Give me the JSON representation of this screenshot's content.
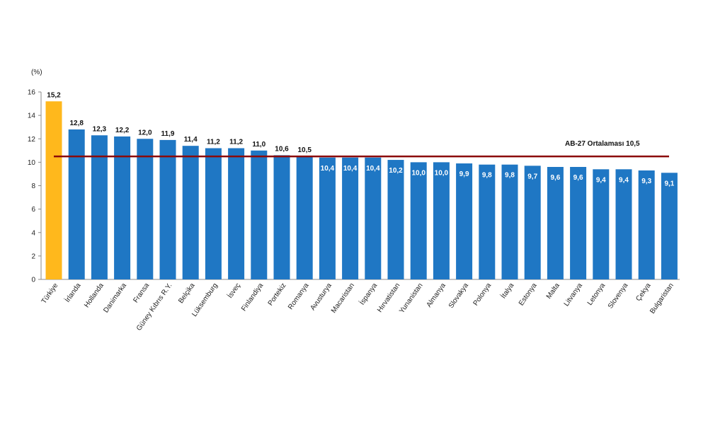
{
  "chart_data": {
    "type": "bar",
    "unit_label": "(%)",
    "categories": [
      "Türkiye",
      "İrlanda",
      "Hollanda",
      "Danimarka",
      "Fransa",
      "Güney Kıbrıs R.Y.",
      "Belçika",
      "Lüksemburg",
      "İsveç",
      "Finlandiya",
      "Portekiz",
      "Romanya",
      "Avusturya",
      "Macaristan",
      "İspanya",
      "Hırvatistan",
      "Yunanistan",
      "Almanya",
      "Slovakya",
      "Polonya",
      "İtalya",
      "Estonya",
      "Malta",
      "Litvanya",
      "Letonya",
      "Slovenya",
      "Çekya",
      "Bulgaristan"
    ],
    "values": [
      15.2,
      12.8,
      12.3,
      12.2,
      12.0,
      11.9,
      11.4,
      11.2,
      11.2,
      11.0,
      10.6,
      10.5,
      10.4,
      10.4,
      10.4,
      10.2,
      10.0,
      10.0,
      9.9,
      9.8,
      9.8,
      9.7,
      9.6,
      9.6,
      9.4,
      9.4,
      9.3,
      9.1
    ],
    "value_labels": [
      "15,2",
      "12,8",
      "12,3",
      "12,2",
      "12,0",
      "11,9",
      "11,4",
      "11,2",
      "11,2",
      "11,0",
      "10,6",
      "10,5",
      "10,4",
      "10,4",
      "10,4",
      "10,2",
      "10,0",
      "10,0",
      "9,9",
      "9,8",
      "9,8",
      "9,7",
      "9,6",
      "9,6",
      "9,4",
      "9,4",
      "9,3",
      "9,1"
    ],
    "highlight_category": "Türkiye",
    "ylim": [
      0,
      16
    ],
    "yticks": [
      0,
      2,
      4,
      6,
      8,
      10,
      12,
      14,
      16
    ],
    "reference_line": {
      "label": "AB-27 Ortalaması  10,5",
      "value": 10.5
    },
    "colors": {
      "bar": "#1f77c4",
      "highlight": "#ffb81c",
      "reference_line": "#8b0a0a",
      "axis": "#888888"
    },
    "grid": false
  }
}
